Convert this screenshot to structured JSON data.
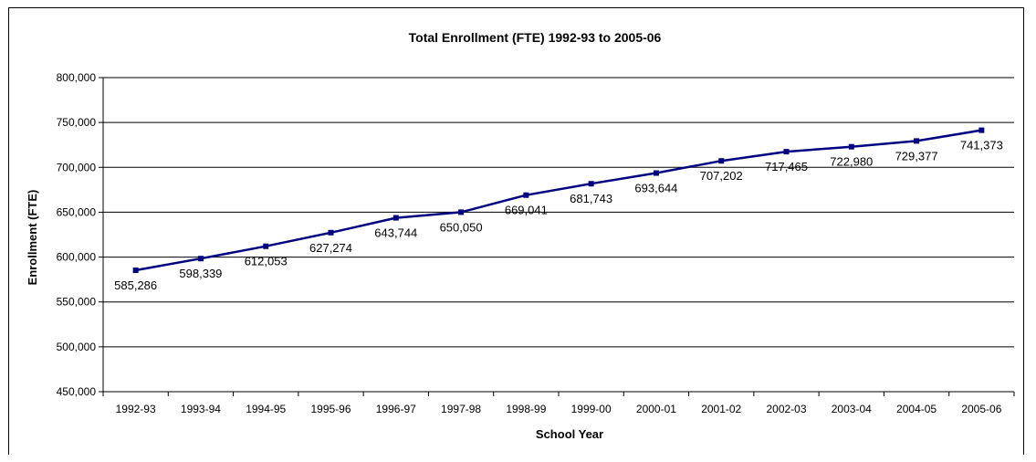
{
  "chart_data": {
    "type": "line",
    "title": "Total Enrollment (FTE) 1992-93 to 2005-06",
    "xlabel": "School Year",
    "ylabel": "Enrollment (FTE)",
    "categories": [
      "1992-93",
      "1993-94",
      "1994-95",
      "1995-96",
      "1996-97",
      "1997-98",
      "1998-99",
      "1999-00",
      "2000-01",
      "2001-02",
      "2002-03",
      "2003-04",
      "2004-05",
      "2005-06"
    ],
    "series": [
      {
        "values": [
          585286,
          598339,
          612053,
          627274,
          643744,
          650050,
          669041,
          681743,
          693644,
          707202,
          717465,
          722980,
          729377,
          741373
        ]
      }
    ],
    "data_labels": [
      "585,286",
      "598,339",
      "612,053",
      "627,274",
      "643,744",
      "650,050",
      "669,041",
      "681,743",
      "693,644",
      "707,202",
      "717,465",
      "722,980",
      "729,377",
      "741,373"
    ],
    "ylim": [
      450000,
      800000
    ],
    "y_ticks": [
      450000,
      500000,
      550000,
      600000,
      650000,
      700000,
      750000,
      800000
    ],
    "y_tick_labels": [
      "450,000",
      "500,000",
      "550,000",
      "600,000",
      "650,000",
      "700,000",
      "750,000",
      "800,000"
    ],
    "grid": true,
    "legend": "none",
    "colors": {
      "line": "#000080",
      "marker": "#000080",
      "grid": "#000000",
      "text": "#000000"
    }
  }
}
